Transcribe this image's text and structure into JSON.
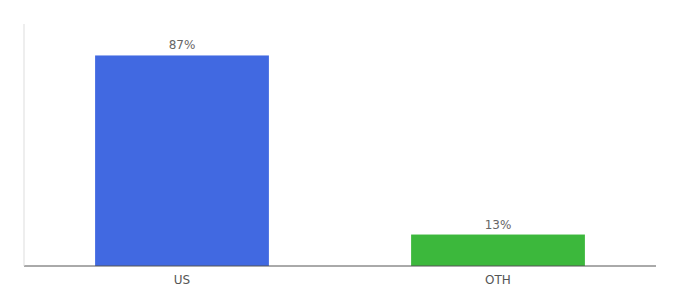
{
  "chart_data": {
    "type": "bar",
    "categories": [
      "US",
      "OTH"
    ],
    "values": [
      87,
      13
    ],
    "value_labels": [
      "87%",
      "13%"
    ],
    "colors": [
      "#4169e1",
      "#3cb83c"
    ],
    "ylim": [
      0,
      100
    ],
    "grid": false,
    "data_labels": true,
    "tick_labels": "x"
  }
}
